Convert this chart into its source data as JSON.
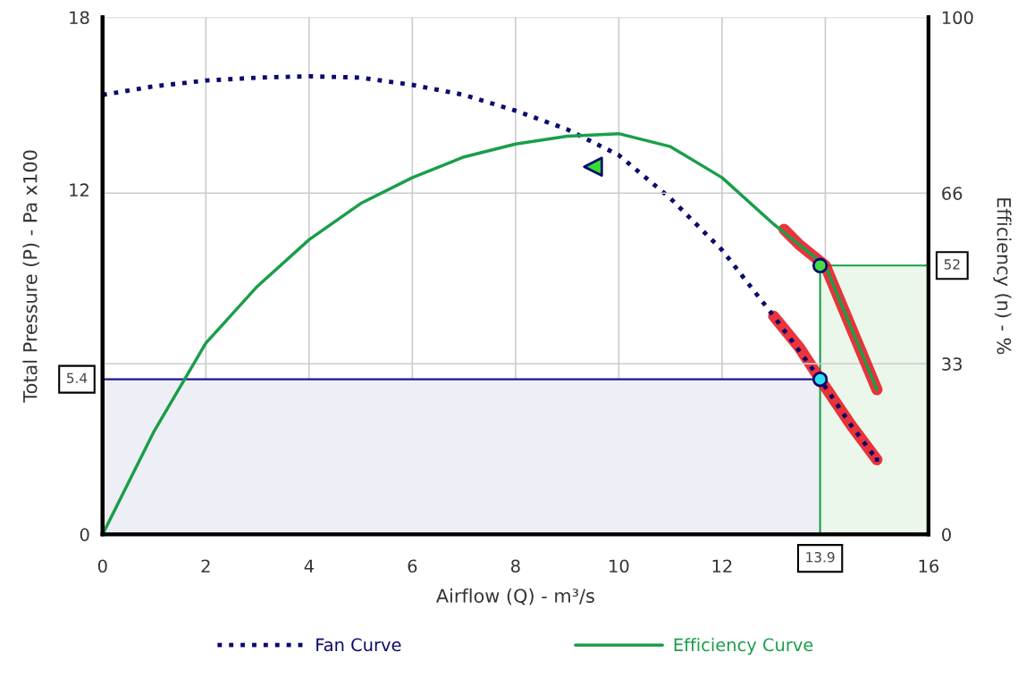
{
  "chart_data": {
    "type": "line",
    "xlabel": "Airflow (Q) - m³/s",
    "ylabel": "Total Pressure (P) - Pa x100",
    "y2label": "Efficiency (n) - %",
    "xlim": [
      0,
      16
    ],
    "xticks": [
      0,
      2,
      4,
      6,
      8,
      10,
      12,
      {
        "value": 14,
        "label": null
      },
      16
    ],
    "ylim": [
      0,
      18
    ],
    "yticks": [
      0,
      12,
      18
    ],
    "y2lim": [
      0,
      100
    ],
    "y2ticks": [
      0,
      33,
      66,
      100
    ],
    "grid": true,
    "legend": "bottom",
    "series": [
      {
        "type": "area",
        "color": "#eeeef6",
        "x": [
          0,
          13.9
        ],
        "values": [
          5.4,
          5.4
        ]
      },
      {
        "type": "area",
        "color": "#eaf7ea",
        "axis": "y2",
        "x": [
          13.9,
          16
        ],
        "values": [
          52,
          52
        ]
      },
      {
        "type": "line",
        "color": "#e8101a",
        "x": [
          13.0,
          13.5,
          13.9,
          14.5,
          15.0
        ],
        "values": [
          7.6,
          6.5,
          5.4,
          3.8,
          2.6
        ]
      },
      {
        "type": "line",
        "color": "#e8101a",
        "axis": "y2",
        "x": [
          13.2,
          13.5,
          14,
          14.5,
          15
        ],
        "values": [
          59,
          56,
          52,
          40,
          28
        ]
      },
      {
        "type": "line",
        "name": "Fan Curve",
        "color": "#0a0a6e",
        "line_style": "dotted",
        "x": [
          0,
          1,
          2,
          3,
          4,
          5,
          6,
          7,
          8,
          9,
          10,
          11,
          12,
          13,
          13.9,
          14.5,
          15
        ],
        "values": [
          15.3,
          15.6,
          15.8,
          15.9,
          15.95,
          15.9,
          15.65,
          15.3,
          14.75,
          14.1,
          13.2,
          11.7,
          9.9,
          7.6,
          5.4,
          3.8,
          2.6
        ]
      },
      {
        "type": "line",
        "name": "Efficiency Curve",
        "color": "#1a9e4a",
        "axis": "y2",
        "x": [
          0,
          1,
          2,
          3,
          4,
          5,
          6,
          7,
          8,
          9,
          10,
          11,
          12,
          13,
          14,
          14.5,
          15
        ],
        "values": [
          0,
          20,
          37,
          48,
          57,
          64,
          69,
          73,
          75.5,
          77,
          77.5,
          75,
          69,
          60,
          52,
          40,
          28
        ]
      },
      {
        "type": "scatter",
        "color": "#33e0f0",
        "marker": "circle",
        "x": [
          13.9
        ],
        "values": [
          5.4
        ]
      },
      {
        "type": "scatter",
        "color": "#44dd44",
        "marker": "circle",
        "axis": "y2",
        "x": [
          13.9
        ],
        "values": [
          52
        ]
      },
      {
        "type": "scatter",
        "color": "#33dd33",
        "marker": "triangle",
        "x": [
          9.5
        ],
        "values": [
          12.8
        ]
      }
    ],
    "annotations": [
      {
        "text": "5.4",
        "x": 0,
        "y": 5.4
      },
      {
        "text": "13.9",
        "x": 13.9,
        "y": 0
      },
      {
        "text": "52",
        "x": 16,
        "y": 9.36
      }
    ]
  }
}
